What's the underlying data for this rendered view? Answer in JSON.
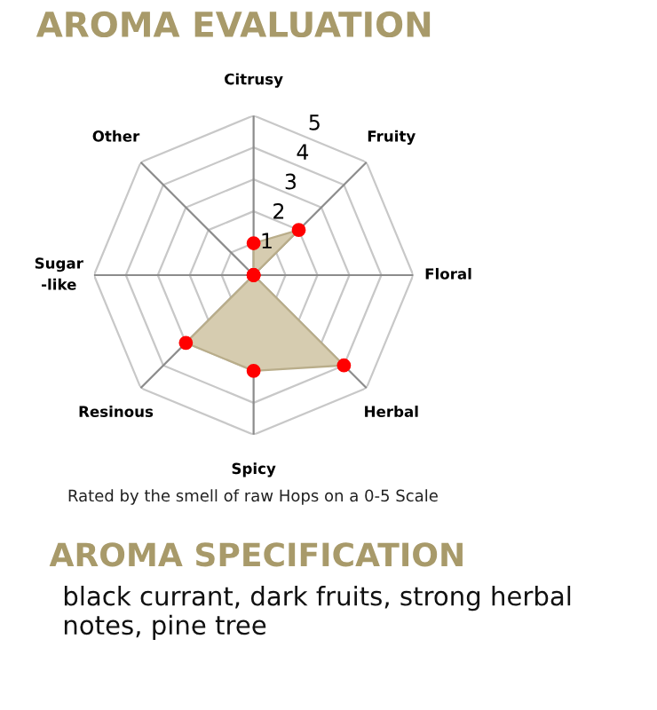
{
  "chart_data": {
    "type": "radar",
    "title": "AROMA EVALUATION",
    "categories": [
      "Citrusy",
      "Fruity",
      "Floral",
      "Herbal",
      "Spicy",
      "Resinous",
      "Sugar\n-like",
      "Other"
    ],
    "series": [
      {
        "color": "#d6ccb0",
        "colors": [
          "#ff0000",
          "#ff0000",
          "#ff0000",
          "#ff0000",
          "#ff0000",
          "#ff0000",
          "#ff0000",
          "#ff0000"
        ],
        "values": [
          1,
          2,
          0,
          4,
          3,
          3,
          0,
          0
        ]
      }
    ],
    "ylim": [
      0,
      5
    ],
    "yticks": [
      1,
      2,
      3,
      4,
      5
    ],
    "marker": "circle",
    "grid": true,
    "annotations": [
      "Rated by the smell of raw Hops on a 0-5 Scale",
      "AROMA SPECIFICATION",
      "black currant, dark fruits, strong herbal notes, pine tree"
    ]
  }
}
